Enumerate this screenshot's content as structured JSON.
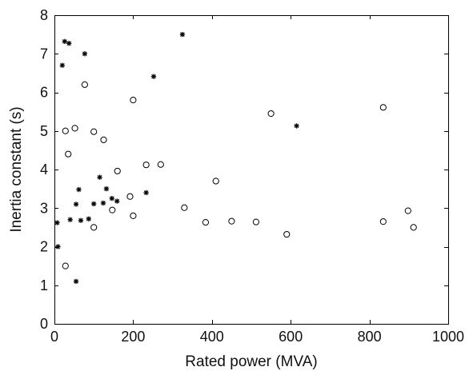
{
  "chart_data": {
    "type": "scatter",
    "title": "",
    "xlabel": "Rated power (MVA)",
    "ylabel": "Inertia constant (s)",
    "xlim": [
      0,
      1000
    ],
    "ylim": [
      0,
      8
    ],
    "xticks": [
      0,
      200,
      400,
      600,
      800,
      1000
    ],
    "yticks": [
      0,
      1,
      2,
      3,
      4,
      5,
      6,
      7,
      8
    ],
    "grid": false,
    "legend": "none",
    "series": [
      {
        "marker": "circle",
        "color": "#000000",
        "points": [
          {
            "x": 28,
            "y": 1.5
          },
          {
            "x": 28,
            "y": 5.0
          },
          {
            "x": 35,
            "y": 4.4
          },
          {
            "x": 52,
            "y": 5.07
          },
          {
            "x": 77,
            "y": 6.2
          },
          {
            "x": 100,
            "y": 2.5
          },
          {
            "x": 100,
            "y": 4.98
          },
          {
            "x": 125,
            "y": 4.77
          },
          {
            "x": 147,
            "y": 2.95
          },
          {
            "x": 160,
            "y": 3.96
          },
          {
            "x": 192,
            "y": 3.3
          },
          {
            "x": 200,
            "y": 5.8
          },
          {
            "x": 200,
            "y": 2.8
          },
          {
            "x": 233,
            "y": 4.12
          },
          {
            "x": 270,
            "y": 4.13
          },
          {
            "x": 330,
            "y": 3.01
          },
          {
            "x": 384,
            "y": 2.63
          },
          {
            "x": 410,
            "y": 3.7
          },
          {
            "x": 450,
            "y": 2.66
          },
          {
            "x": 512,
            "y": 2.64
          },
          {
            "x": 550,
            "y": 5.45
          },
          {
            "x": 590,
            "y": 2.32
          },
          {
            "x": 835,
            "y": 5.61
          },
          {
            "x": 835,
            "y": 2.65
          },
          {
            "x": 898,
            "y": 2.93
          },
          {
            "x": 912,
            "y": 2.5
          }
        ]
      },
      {
        "marker": "asterisk",
        "color": "#000000",
        "points": [
          {
            "x": 7,
            "y": 2.62
          },
          {
            "x": 9,
            "y": 2.0
          },
          {
            "x": 20,
            "y": 6.7
          },
          {
            "x": 26,
            "y": 7.32
          },
          {
            "x": 37,
            "y": 7.27
          },
          {
            "x": 40,
            "y": 2.7
          },
          {
            "x": 55,
            "y": 1.1
          },
          {
            "x": 55,
            "y": 3.1
          },
          {
            "x": 62,
            "y": 3.48
          },
          {
            "x": 67,
            "y": 2.68
          },
          {
            "x": 77,
            "y": 7.0
          },
          {
            "x": 87,
            "y": 2.72
          },
          {
            "x": 100,
            "y": 3.11
          },
          {
            "x": 115,
            "y": 3.8
          },
          {
            "x": 124,
            "y": 3.13
          },
          {
            "x": 132,
            "y": 3.5
          },
          {
            "x": 146,
            "y": 3.25
          },
          {
            "x": 159,
            "y": 3.18
          },
          {
            "x": 233,
            "y": 3.4
          },
          {
            "x": 252,
            "y": 6.41
          },
          {
            "x": 325,
            "y": 7.5
          },
          {
            "x": 615,
            "y": 5.13
          }
        ]
      }
    ]
  }
}
